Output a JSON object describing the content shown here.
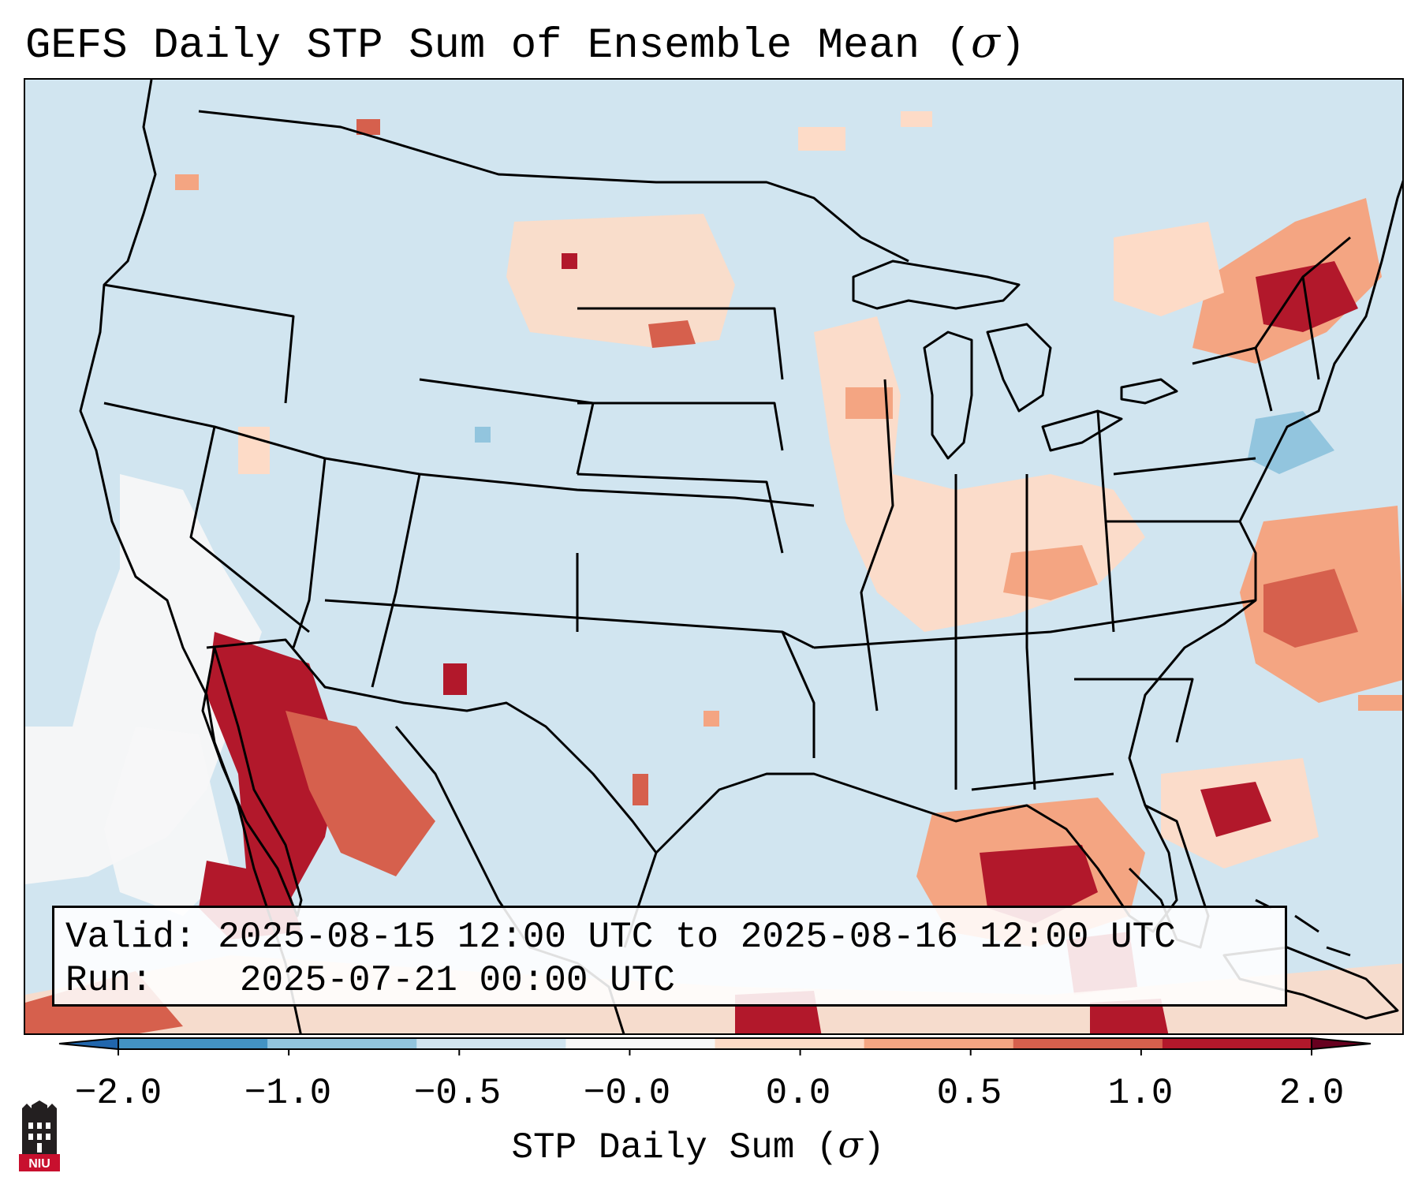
{
  "title": {
    "text": "GEFS Daily STP Sum of Ensemble Mean (",
    "symbol": "σ",
    "close": ")"
  },
  "map": {
    "projection": "Lambert Conformal – CONUS",
    "background_color": "#d1e5f0",
    "land_outline_color": "#000000",
    "anomaly_regions": [
      {
        "region": "California / Nevada desert",
        "sign": "near-zero white",
        "color": "#f7f7f7"
      },
      {
        "region": "Baja California / Sonora",
        "sign": "strong positive",
        "color": "#b2182b"
      },
      {
        "region": "Northern Plains",
        "sign": "weak positive",
        "color": "#fddbc7"
      },
      {
        "region": "Upper Midwest / Ohio Valley",
        "sign": "weak positive",
        "color": "#fddbc7"
      },
      {
        "region": "Northeast / New England",
        "sign": "moderate positive",
        "color": "#d6604d"
      },
      {
        "region": "Gulf of Mexico",
        "sign": "strong positive",
        "color": "#b2182b"
      },
      {
        "region": "Western Atlantic",
        "sign": "moderate positive",
        "color": "#f4a582"
      },
      {
        "region": "Southern New England coast",
        "sign": "negative",
        "color": "#92c5de"
      }
    ]
  },
  "info": {
    "valid_label": "Valid:",
    "valid_value": "2025-08-15 12:00 UTC to 2025-08-16 12:00 UTC",
    "run_label": "Run:",
    "run_value": "2025-07-21 00:00 UTC"
  },
  "colorbar": {
    "ticks": [
      "−2.0",
      "−1.0",
      "−0.5",
      "−0.0",
      "0.0",
      "0.5",
      "1.0",
      "2.0"
    ],
    "bin_colors": [
      "#2166ac",
      "#4393c3",
      "#92c5de",
      "#d1e5f0",
      "#f7f7f7",
      "#fddbc7",
      "#f4a582",
      "#d6604d",
      "#b2182b",
      "#67001f"
    ],
    "label_text": "STP Daily Sum (",
    "label_symbol": "σ",
    "label_close": ")"
  },
  "logo": {
    "text": "NIU",
    "color": "#c8102e"
  }
}
